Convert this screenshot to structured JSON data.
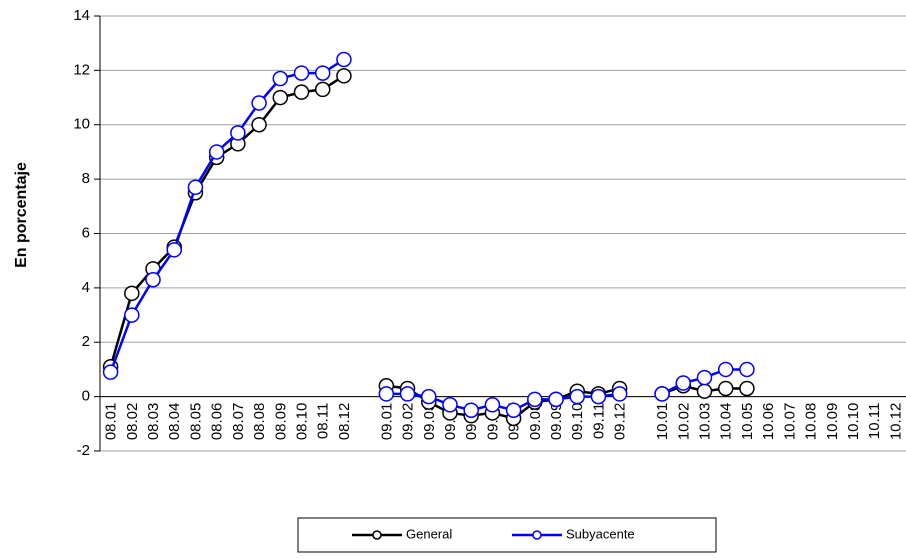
{
  "chart_data": {
    "type": "line",
    "y_label": "En porcentaje",
    "categories": [
      "08.01",
      "08.02",
      "08.03",
      "08.04",
      "08.05",
      "08.06",
      "08.07",
      "08.08",
      "08.09",
      "08.10",
      "08.11",
      "08.12",
      null,
      "09.01",
      "09.02",
      "09.03",
      "09.04",
      "09.05",
      "09.06",
      "09.07",
      "09.08",
      "09.09",
      "09.10",
      "09.11",
      "09.12",
      null,
      "10.01",
      "10.02",
      "10.03",
      "10.04",
      "10.05",
      "10.06",
      "10.07",
      "10.08",
      "10.09",
      "10.10",
      "10.11",
      "10.12"
    ],
    "series": [
      {
        "name": "General",
        "color": "#000000",
        "values": [
          1.1,
          3.8,
          4.7,
          5.5,
          7.5,
          8.8,
          9.3,
          10.0,
          11.0,
          11.2,
          11.3,
          11.8,
          null,
          0.4,
          0.3,
          -0.2,
          -0.6,
          -0.7,
          -0.6,
          -0.8,
          -0.2,
          -0.1,
          0.2,
          0.1,
          0.3,
          null,
          0.1,
          0.4,
          0.2,
          0.3,
          0.3,
          null,
          null,
          null,
          null,
          null,
          null,
          null
        ]
      },
      {
        "name": "Subyacente",
        "color": "#0000ff",
        "values": [
          0.9,
          3.0,
          4.3,
          5.4,
          7.7,
          9.0,
          9.7,
          10.8,
          11.7,
          11.9,
          11.9,
          12.4,
          null,
          0.1,
          0.1,
          0.0,
          -0.3,
          -0.5,
          -0.3,
          -0.5,
          -0.1,
          -0.1,
          0.0,
          0.0,
          0.1,
          null,
          0.1,
          0.5,
          0.7,
          1.0,
          1.0,
          null,
          null,
          null,
          null,
          null,
          null,
          null
        ]
      }
    ],
    "ylim": [
      -2,
      14
    ],
    "yticks": [
      -2,
      0,
      2,
      4,
      6,
      8,
      10,
      12,
      14
    ],
    "grid": true,
    "legend": "bottom"
  }
}
